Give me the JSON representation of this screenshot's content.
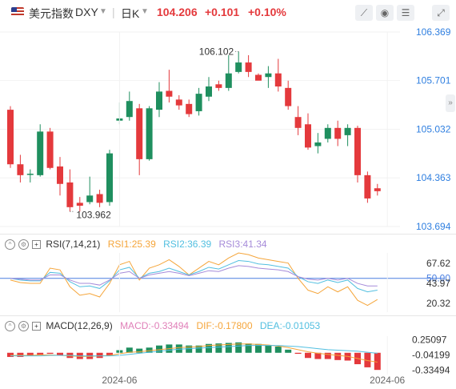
{
  "header": {
    "name": "美元指数",
    "symbol": "DXY",
    "period": "日K",
    "price": "104.206",
    "change": "+0.101",
    "change_pct": "+0.10%",
    "icons": [
      "draw-line-icon",
      "eye-icon",
      "settings-icon",
      "fullscreen-icon"
    ]
  },
  "colors": {
    "up": "#e4393c",
    "down": "#1f8f5f",
    "rsi1": "#f5a53a",
    "rsi2": "#52bfe0",
    "rsi3": "#a68bd9",
    "macd": "#e07fb8",
    "dif": "#f5a53a",
    "dea": "#52bfe0",
    "zero": "#4a7fe0"
  },
  "rsi_header": {
    "label": "RSI(7,14,21)",
    "rsi1": "RSI1:25.39",
    "rsi2": "RSI2:36.39",
    "rsi3": "RSI3:41.34"
  },
  "macd_header": {
    "label": "MACD(12,26,9)",
    "macd": "MACD:-0.33494",
    "dif": "DIF:-0.17800",
    "dea": "DEA:-0.01053"
  },
  "chart_data": {
    "type": "candlestick",
    "price_axis": {
      "ticks": [
        106.369,
        105.701,
        105.032,
        104.363,
        103.694
      ],
      "range": [
        103.694,
        106.369
      ]
    },
    "annotations": [
      {
        "label": "106.102",
        "type": "high"
      },
      {
        "label": "103.962",
        "type": "low"
      }
    ],
    "x_ticks": [
      {
        "label": "2024-06",
        "index": 11
      },
      {
        "label": "2024-06",
        "index": 38
      }
    ],
    "candles": [
      {
        "o": 105.3,
        "c": 104.55,
        "h": 105.35,
        "l": 104.5
      },
      {
        "o": 104.55,
        "c": 104.4,
        "h": 104.68,
        "l": 104.3
      },
      {
        "o": 104.42,
        "c": 104.42,
        "h": 104.48,
        "l": 104.3
      },
      {
        "o": 104.4,
        "c": 105.0,
        "h": 105.1,
        "l": 104.38
      },
      {
        "o": 105.0,
        "c": 104.5,
        "h": 105.05,
        "l": 104.48
      },
      {
        "o": 104.52,
        "c": 104.28,
        "h": 104.65,
        "l": 104.12
      },
      {
        "o": 104.3,
        "c": 103.96,
        "h": 104.48,
        "l": 103.9
      },
      {
        "o": 104.02,
        "c": 103.98,
        "h": 104.1,
        "l": 103.9
      },
      {
        "o": 104.03,
        "c": 104.12,
        "h": 104.38,
        "l": 104.0
      },
      {
        "o": 104.14,
        "c": 104.02,
        "h": 104.2,
        "l": 103.96
      },
      {
        "o": 104.03,
        "c": 104.7,
        "h": 104.75,
        "l": 103.98
      },
      {
        "o": 105.15,
        "c": 105.18,
        "h": 105.4,
        "l": 105.1
      },
      {
        "o": 105.2,
        "c": 105.42,
        "h": 105.55,
        "l": 105.15
      },
      {
        "o": 105.32,
        "c": 104.62,
        "h": 105.38,
        "l": 104.4
      },
      {
        "o": 104.62,
        "c": 105.32,
        "h": 105.35,
        "l": 104.6
      },
      {
        "o": 105.3,
        "c": 105.55,
        "h": 105.68,
        "l": 105.2
      },
      {
        "o": 105.56,
        "c": 105.48,
        "h": 105.85,
        "l": 105.4
      },
      {
        "o": 105.44,
        "c": 105.36,
        "h": 105.5,
        "l": 105.3
      },
      {
        "o": 105.38,
        "c": 105.24,
        "h": 105.44,
        "l": 105.2
      },
      {
        "o": 105.28,
        "c": 105.52,
        "h": 105.6,
        "l": 105.22
      },
      {
        "o": 105.48,
        "c": 105.62,
        "h": 105.75,
        "l": 105.42
      },
      {
        "o": 105.65,
        "c": 105.6,
        "h": 105.7,
        "l": 105.56
      },
      {
        "o": 105.6,
        "c": 105.8,
        "h": 106.05,
        "l": 105.56
      },
      {
        "o": 105.82,
        "c": 105.95,
        "h": 106.1,
        "l": 105.8
      },
      {
        "o": 105.95,
        "c": 105.82,
        "h": 106.05,
        "l": 105.75
      },
      {
        "o": 105.78,
        "c": 105.7,
        "h": 105.8,
        "l": 105.72
      },
      {
        "o": 105.75,
        "c": 105.8,
        "h": 105.9,
        "l": 105.6
      },
      {
        "o": 105.8,
        "c": 105.62,
        "h": 106.0,
        "l": 105.55
      },
      {
        "o": 105.6,
        "c": 105.35,
        "h": 105.7,
        "l": 105.3
      },
      {
        "o": 105.2,
        "c": 105.05,
        "h": 105.35,
        "l": 104.95
      },
      {
        "o": 105.1,
        "c": 104.78,
        "h": 105.25,
        "l": 104.75
      },
      {
        "o": 104.8,
        "c": 104.85,
        "h": 104.98,
        "l": 104.7
      },
      {
        "o": 104.9,
        "c": 105.05,
        "h": 105.1,
        "l": 104.85
      },
      {
        "o": 105.05,
        "c": 104.9,
        "h": 105.15,
        "l": 104.8
      },
      {
        "o": 104.95,
        "c": 105.05,
        "h": 105.1,
        "l": 104.8
      },
      {
        "o": 105.05,
        "c": 104.4,
        "h": 105.08,
        "l": 104.3
      },
      {
        "o": 104.4,
        "c": 104.08,
        "h": 104.45,
        "l": 104.02
      },
      {
        "o": 104.22,
        "c": 104.18,
        "h": 104.28,
        "l": 104.12
      }
    ],
    "rsi": {
      "ticks": [
        67.62,
        50.0,
        43.97,
        20.32
      ],
      "range": [
        10,
        80
      ],
      "rsi1": [
        48,
        45,
        44,
        44,
        62,
        60,
        40,
        30,
        32,
        28,
        44,
        66,
        70,
        48,
        62,
        66,
        72,
        64,
        54,
        62,
        70,
        66,
        74,
        80,
        78,
        74,
        72,
        70,
        68,
        50,
        36,
        32,
        40,
        34,
        40,
        24,
        18,
        25
      ],
      "rsi2": [
        50,
        48,
        47,
        47,
        57,
        56,
        46,
        40,
        41,
        38,
        47,
        60,
        63,
        50,
        56,
        58,
        62,
        58,
        54,
        58,
        63,
        61,
        66,
        71,
        70,
        67,
        66,
        64,
        62,
        52,
        46,
        44,
        48,
        45,
        48,
        38,
        34,
        36
      ],
      "rsi3": [
        50,
        49,
        48,
        48,
        54,
        54,
        48,
        44,
        44,
        42,
        48,
        56,
        58,
        50,
        54,
        56,
        58,
        56,
        53,
        56,
        59,
        58,
        62,
        65,
        64,
        62,
        61,
        60,
        58,
        52,
        49,
        48,
        50,
        48,
        50,
        44,
        41,
        41
      ]
    },
    "macd": {
      "ticks": [
        0.25097,
        -0.04199,
        -0.33494
      ],
      "range": [
        -0.42,
        0.32
      ],
      "hist": [
        -0.08,
        -0.08,
        -0.06,
        -0.04,
        -0.02,
        -0.05,
        -0.1,
        -0.12,
        -0.12,
        -0.1,
        -0.06,
        0.05,
        0.1,
        0.08,
        0.1,
        0.14,
        0.16,
        0.16,
        0.14,
        0.14,
        0.17,
        0.18,
        0.19,
        0.2,
        0.18,
        0.17,
        0.15,
        0.12,
        0.06,
        -0.02,
        -0.1,
        -0.12,
        -0.12,
        -0.14,
        -0.15,
        -0.22,
        -0.28,
        -0.33
      ],
      "dif": [
        -0.05,
        -0.05,
        -0.05,
        -0.04,
        -0.04,
        -0.05,
        -0.06,
        -0.07,
        -0.07,
        -0.06,
        -0.05,
        -0.02,
        0.01,
        0.02,
        0.04,
        0.06,
        0.08,
        0.1,
        0.11,
        0.12,
        0.14,
        0.15,
        0.16,
        0.17,
        0.17,
        0.16,
        0.15,
        0.13,
        0.1,
        0.06,
        0.02,
        -0.01,
        -0.03,
        -0.05,
        -0.07,
        -0.11,
        -0.15,
        -0.18
      ],
      "dea": [
        -0.06,
        -0.06,
        -0.06,
        -0.06,
        -0.05,
        -0.05,
        -0.05,
        -0.06,
        -0.06,
        -0.06,
        -0.06,
        -0.05,
        -0.03,
        -0.01,
        0.01,
        0.03,
        0.05,
        0.07,
        0.08,
        0.09,
        0.1,
        0.11,
        0.12,
        0.13,
        0.14,
        0.14,
        0.14,
        0.14,
        0.13,
        0.12,
        0.1,
        0.08,
        0.06,
        0.05,
        0.04,
        0.03,
        0.01,
        -0.01
      ]
    }
  }
}
